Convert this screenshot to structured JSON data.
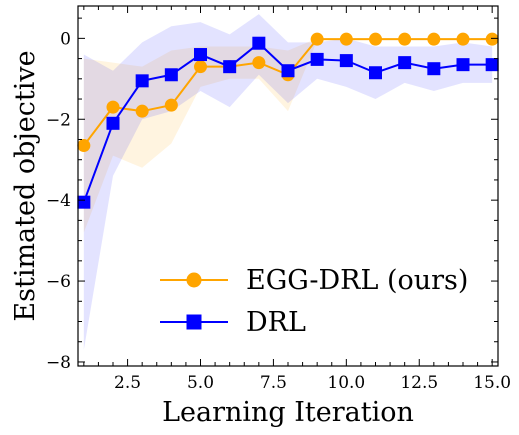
{
  "chart_data": {
    "type": "line",
    "xlabel": "Learning Iteration",
    "ylabel": "Estimated objective",
    "xlim": [
      0.8,
      15.2
    ],
    "ylim": [
      -8.1,
      0.8
    ],
    "x_ticks": [
      2.5,
      5.0,
      7.5,
      10.0,
      12.5,
      15.0
    ],
    "x_tick_labels": [
      "2.5",
      "5.0",
      "7.5",
      "10.0",
      "12.5",
      "15.0"
    ],
    "y_ticks": [
      -8,
      -6,
      -4,
      -2,
      0
    ],
    "y_tick_labels": [
      "−8",
      "−6",
      "−4",
      "−2",
      "0"
    ],
    "grid": false,
    "legend_position": "bottom-right",
    "x": [
      1,
      2,
      3,
      4,
      5,
      6,
      7,
      8,
      9,
      10,
      11,
      12,
      13,
      14,
      15
    ],
    "series": [
      {
        "name": "EGG-DRL (ours)",
        "color": "#ffa500",
        "marker": "circle",
        "values": [
          -2.65,
          -1.7,
          -1.8,
          -1.65,
          -0.7,
          -0.7,
          -0.6,
          -0.9,
          -0.02,
          -0.02,
          -0.02,
          -0.02,
          -0.02,
          -0.02,
          -0.02
        ],
        "band_upper": [
          -0.5,
          -0.6,
          -0.7,
          -0.3,
          -0.2,
          -0.2,
          -0.2,
          -0.3,
          0.0,
          0.0,
          0.0,
          0.0,
          0.0,
          0.0,
          0.0
        ],
        "band_lower": [
          -4.8,
          -2.9,
          -3.2,
          -2.6,
          -1.2,
          -1.0,
          -1.0,
          -1.8,
          -0.05,
          -0.05,
          -0.05,
          -0.05,
          -0.05,
          -0.05,
          -0.05
        ]
      },
      {
        "name": "DRL",
        "color": "#0000ff",
        "marker": "square",
        "values": [
          -4.05,
          -2.1,
          -1.05,
          -0.9,
          -0.4,
          -0.7,
          -0.12,
          -0.8,
          -0.52,
          -0.55,
          -0.85,
          -0.6,
          -0.75,
          -0.65,
          -0.65
        ],
        "band_upper": [
          -0.4,
          -0.8,
          -0.1,
          0.3,
          0.4,
          0.1,
          0.6,
          -0.1,
          -0.1,
          0.0,
          -0.2,
          -0.2,
          -0.2,
          -0.1,
          -0.2
        ],
        "band_lower": [
          -7.7,
          -3.4,
          -2.0,
          -1.8,
          -1.3,
          -1.7,
          -0.9,
          -1.6,
          -1.0,
          -1.2,
          -1.5,
          -1.1,
          -1.3,
          -1.1,
          -1.1
        ]
      }
    ]
  }
}
